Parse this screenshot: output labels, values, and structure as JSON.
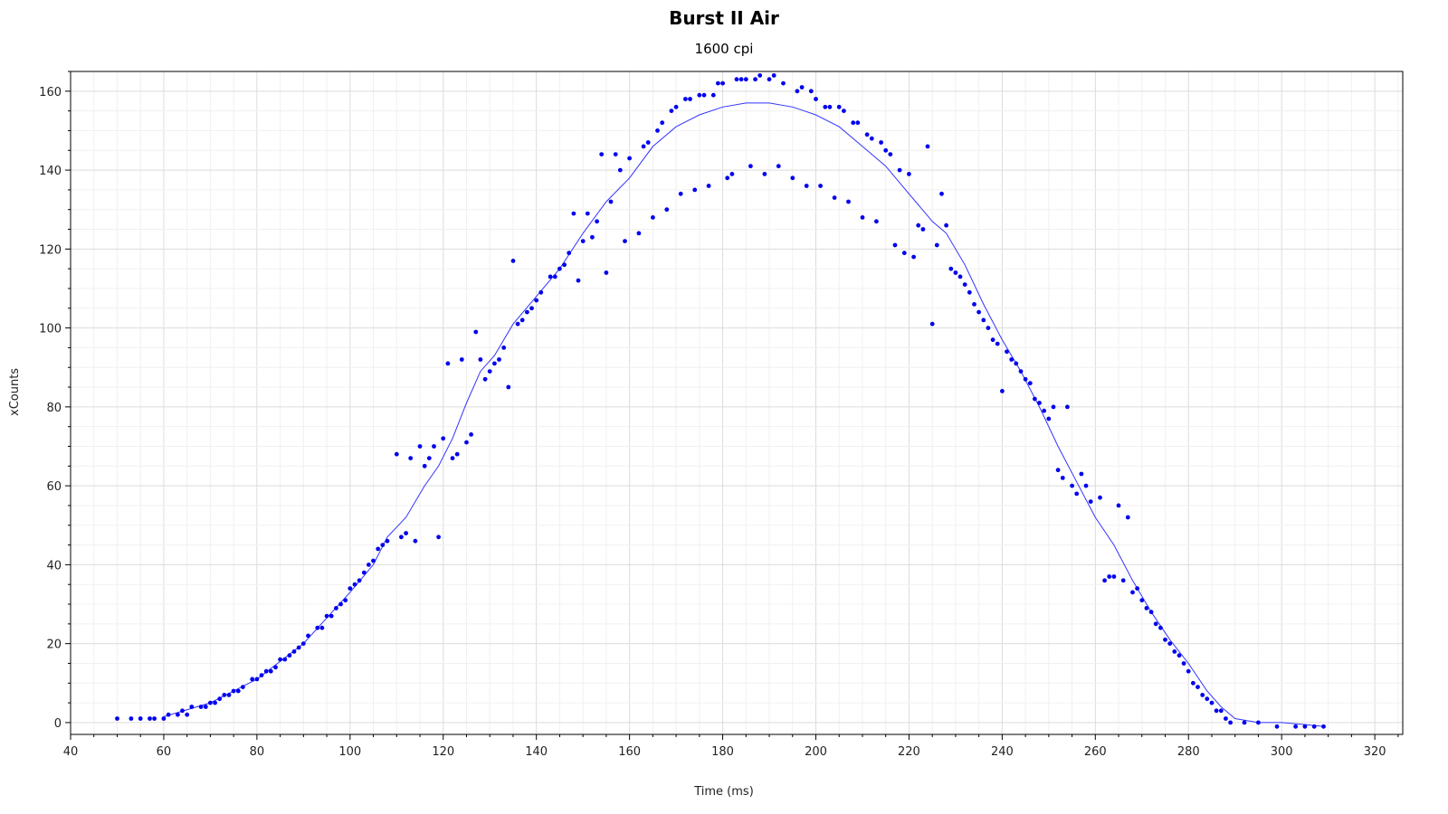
{
  "chart_data": {
    "type": "scatter",
    "title": "Burst II Air",
    "subtitle": "1600 cpi",
    "xlabel": "Time (ms)",
    "ylabel": "xCounts",
    "xlim": [
      40,
      326
    ],
    "ylim": [
      -3,
      165
    ],
    "xticks": [
      40,
      60,
      80,
      100,
      120,
      140,
      160,
      180,
      200,
      220,
      240,
      260,
      280,
      300,
      320
    ],
    "yticks": [
      0,
      20,
      40,
      60,
      80,
      100,
      120,
      140,
      160
    ],
    "grid": true,
    "point_color": "#0000ee",
    "line_color": "#3333ff",
    "series": [
      {
        "type": "scatter",
        "points": [
          [
            50,
            1
          ],
          [
            53,
            1
          ],
          [
            55,
            1
          ],
          [
            57,
            1
          ],
          [
            58,
            1
          ],
          [
            60,
            1
          ],
          [
            61,
            2
          ],
          [
            63,
            2
          ],
          [
            64,
            3
          ],
          [
            65,
            2
          ],
          [
            66,
            4
          ],
          [
            68,
            4
          ],
          [
            69,
            4
          ],
          [
            70,
            5
          ],
          [
            71,
            5
          ],
          [
            72,
            6
          ],
          [
            73,
            7
          ],
          [
            74,
            7
          ],
          [
            75,
            8
          ],
          [
            76,
            8
          ],
          [
            77,
            9
          ],
          [
            79,
            11
          ],
          [
            80,
            11
          ],
          [
            81,
            12
          ],
          [
            82,
            13
          ],
          [
            83,
            13
          ],
          [
            84,
            14
          ],
          [
            85,
            16
          ],
          [
            86,
            16
          ],
          [
            87,
            17
          ],
          [
            88,
            18
          ],
          [
            89,
            19
          ],
          [
            90,
            20
          ],
          [
            91,
            22
          ],
          [
            93,
            24
          ],
          [
            94,
            24
          ],
          [
            95,
            27
          ],
          [
            96,
            27
          ],
          [
            97,
            29
          ],
          [
            98,
            30
          ],
          [
            99,
            31
          ],
          [
            100,
            34
          ],
          [
            101,
            35
          ],
          [
            102,
            36
          ],
          [
            103,
            38
          ],
          [
            104,
            40
          ],
          [
            105,
            41
          ],
          [
            106,
            44
          ],
          [
            107,
            45
          ],
          [
            108,
            46
          ],
          [
            110,
            68
          ],
          [
            111,
            47
          ],
          [
            112,
            48
          ],
          [
            113,
            67
          ],
          [
            114,
            46
          ],
          [
            115,
            70
          ],
          [
            116,
            65
          ],
          [
            117,
            67
          ],
          [
            118,
            70
          ],
          [
            119,
            47
          ],
          [
            120,
            72
          ],
          [
            121,
            91
          ],
          [
            122,
            67
          ],
          [
            123,
            68
          ],
          [
            124,
            92
          ],
          [
            125,
            71
          ],
          [
            126,
            73
          ],
          [
            127,
            99
          ],
          [
            128,
            92
          ],
          [
            129,
            87
          ],
          [
            130,
            89
          ],
          [
            131,
            91
          ],
          [
            132,
            92
          ],
          [
            133,
            95
          ],
          [
            134,
            85
          ],
          [
            135,
            117
          ],
          [
            136,
            101
          ],
          [
            137,
            102
          ],
          [
            138,
            104
          ],
          [
            139,
            105
          ],
          [
            140,
            107
          ],
          [
            141,
            109
          ],
          [
            143,
            113
          ],
          [
            144,
            113
          ],
          [
            145,
            115
          ],
          [
            146,
            116
          ],
          [
            147,
            119
          ],
          [
            148,
            129
          ],
          [
            149,
            112
          ],
          [
            150,
            122
          ],
          [
            151,
            129
          ],
          [
            152,
            123
          ],
          [
            153,
            127
          ],
          [
            154,
            144
          ],
          [
            155,
            114
          ],
          [
            156,
            132
          ],
          [
            157,
            144
          ],
          [
            158,
            140
          ],
          [
            159,
            122
          ],
          [
            160,
            143
          ],
          [
            162,
            124
          ],
          [
            163,
            146
          ],
          [
            164,
            147
          ],
          [
            165,
            128
          ],
          [
            166,
            150
          ],
          [
            167,
            152
          ],
          [
            168,
            130
          ],
          [
            169,
            155
          ],
          [
            170,
            156
          ],
          [
            171,
            134
          ],
          [
            172,
            158
          ],
          [
            173,
            158
          ],
          [
            174,
            135
          ],
          [
            175,
            159
          ],
          [
            176,
            159
          ],
          [
            177,
            136
          ],
          [
            178,
            159
          ],
          [
            179,
            162
          ],
          [
            180,
            162
          ],
          [
            181,
            138
          ],
          [
            182,
            139
          ],
          [
            183,
            163
          ],
          [
            184,
            163
          ],
          [
            185,
            163
          ],
          [
            186,
            141
          ],
          [
            187,
            163
          ],
          [
            188,
            164
          ],
          [
            189,
            139
          ],
          [
            190,
            163
          ],
          [
            191,
            164
          ],
          [
            192,
            141
          ],
          [
            193,
            162
          ],
          [
            195,
            138
          ],
          [
            196,
            160
          ],
          [
            197,
            161
          ],
          [
            198,
            136
          ],
          [
            199,
            160
          ],
          [
            200,
            158
          ],
          [
            201,
            136
          ],
          [
            202,
            156
          ],
          [
            203,
            156
          ],
          [
            204,
            133
          ],
          [
            205,
            156
          ],
          [
            206,
            155
          ],
          [
            207,
            132
          ],
          [
            208,
            152
          ],
          [
            209,
            152
          ],
          [
            210,
            128
          ],
          [
            211,
            149
          ],
          [
            212,
            148
          ],
          [
            213,
            127
          ],
          [
            214,
            147
          ],
          [
            215,
            145
          ],
          [
            216,
            144
          ],
          [
            217,
            121
          ],
          [
            218,
            140
          ],
          [
            219,
            119
          ],
          [
            220,
            139
          ],
          [
            221,
            118
          ],
          [
            222,
            126
          ],
          [
            223,
            125
          ],
          [
            224,
            146
          ],
          [
            225,
            101
          ],
          [
            226,
            121
          ],
          [
            227,
            134
          ],
          [
            228,
            126
          ],
          [
            229,
            115
          ],
          [
            230,
            114
          ],
          [
            231,
            113
          ],
          [
            232,
            111
          ],
          [
            233,
            109
          ],
          [
            234,
            106
          ],
          [
            235,
            104
          ],
          [
            236,
            102
          ],
          [
            237,
            100
          ],
          [
            238,
            97
          ],
          [
            239,
            96
          ],
          [
            240,
            84
          ],
          [
            241,
            94
          ],
          [
            242,
            92
          ],
          [
            243,
            91
          ],
          [
            244,
            89
          ],
          [
            245,
            87
          ],
          [
            246,
            86
          ],
          [
            247,
            82
          ],
          [
            248,
            81
          ],
          [
            249,
            79
          ],
          [
            250,
            77
          ],
          [
            251,
            80
          ],
          [
            252,
            64
          ],
          [
            253,
            62
          ],
          [
            254,
            80
          ],
          [
            255,
            60
          ],
          [
            256,
            58
          ],
          [
            257,
            63
          ],
          [
            258,
            60
          ],
          [
            259,
            56
          ],
          [
            261,
            57
          ],
          [
            262,
            36
          ],
          [
            263,
            37
          ],
          [
            264,
            37
          ],
          [
            265,
            55
          ],
          [
            266,
            36
          ],
          [
            267,
            52
          ],
          [
            268,
            33
          ],
          [
            269,
            34
          ],
          [
            270,
            31
          ],
          [
            271,
            29
          ],
          [
            272,
            28
          ],
          [
            273,
            25
          ],
          [
            274,
            24
          ],
          [
            275,
            21
          ],
          [
            276,
            20
          ],
          [
            277,
            18
          ],
          [
            278,
            17
          ],
          [
            279,
            15
          ],
          [
            280,
            13
          ],
          [
            281,
            10
          ],
          [
            282,
            9
          ],
          [
            283,
            7
          ],
          [
            284,
            6
          ],
          [
            285,
            5
          ],
          [
            286,
            3
          ],
          [
            287,
            3
          ],
          [
            288,
            1
          ],
          [
            289,
            0
          ],
          [
            292,
            0
          ],
          [
            295,
            0
          ],
          [
            299,
            -1
          ],
          [
            303,
            -1
          ],
          [
            305,
            -1
          ],
          [
            307,
            -1
          ],
          [
            309,
            -1
          ]
        ]
      },
      {
        "type": "line",
        "points": [
          [
            60,
            1.5
          ],
          [
            70,
            5
          ],
          [
            80,
            11
          ],
          [
            90,
            20
          ],
          [
            100,
            33
          ],
          [
            105,
            40
          ],
          [
            108,
            47
          ],
          [
            112,
            52
          ],
          [
            116,
            60
          ],
          [
            119,
            65
          ],
          [
            122,
            72
          ],
          [
            125,
            81
          ],
          [
            128,
            89
          ],
          [
            131,
            93
          ],
          [
            135,
            101
          ],
          [
            140,
            108
          ],
          [
            145,
            115
          ],
          [
            150,
            124
          ],
          [
            155,
            132
          ],
          [
            160,
            138
          ],
          [
            165,
            146
          ],
          [
            170,
            151
          ],
          [
            175,
            154
          ],
          [
            180,
            156
          ],
          [
            185,
            157
          ],
          [
            190,
            157
          ],
          [
            195,
            156
          ],
          [
            200,
            154
          ],
          [
            205,
            151
          ],
          [
            210,
            146
          ],
          [
            215,
            141
          ],
          [
            220,
            134
          ],
          [
            225,
            127
          ],
          [
            228,
            124
          ],
          [
            232,
            116
          ],
          [
            236,
            106
          ],
          [
            240,
            97
          ],
          [
            244,
            89
          ],
          [
            248,
            80
          ],
          [
            252,
            70
          ],
          [
            256,
            61
          ],
          [
            260,
            52
          ],
          [
            264,
            45
          ],
          [
            268,
            36
          ],
          [
            272,
            28
          ],
          [
            276,
            21
          ],
          [
            280,
            15
          ],
          [
            284,
            8
          ],
          [
            287,
            4
          ],
          [
            290,
            1
          ],
          [
            295,
            0
          ],
          [
            300,
            0
          ],
          [
            305,
            -0.5
          ],
          [
            309,
            -1
          ]
        ]
      }
    ]
  }
}
